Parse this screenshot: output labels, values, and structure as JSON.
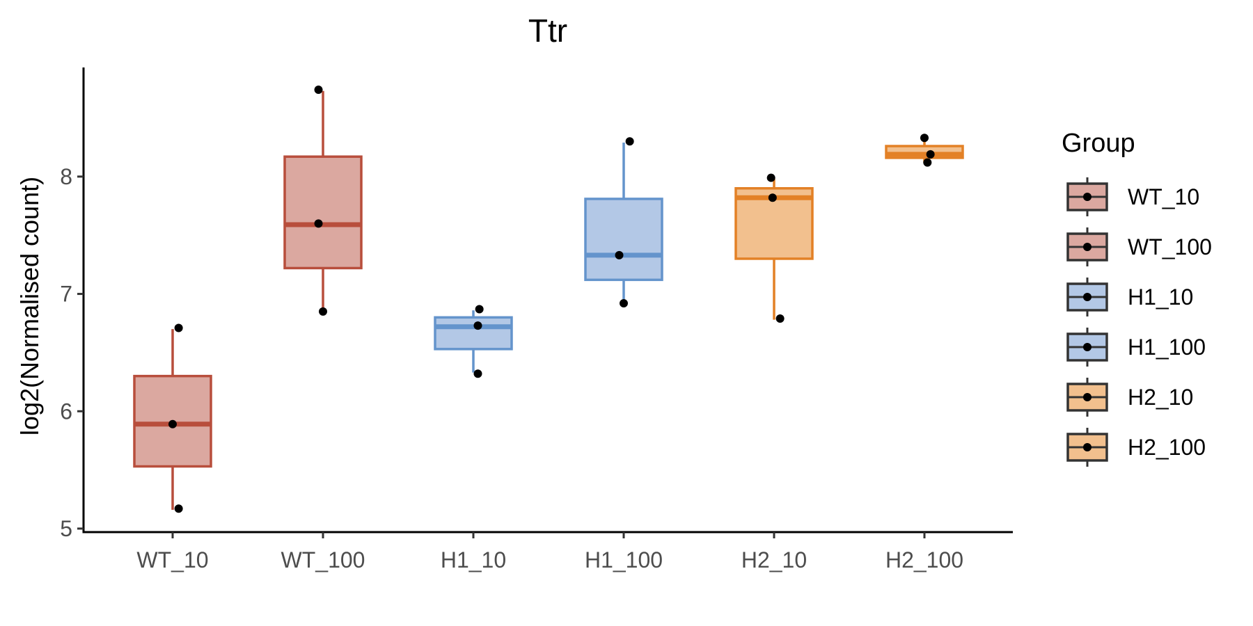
{
  "chart_data": {
    "type": "box",
    "title": "Ttr",
    "xlabel": "",
    "ylabel": "log2(Normalised count)",
    "ylim": [
      4.97,
      8.93
    ],
    "yticks": [
      5,
      6,
      7,
      8
    ],
    "grid": false,
    "legend_title": "Group",
    "legend_position": "right",
    "categories": [
      "WT_10",
      "WT_100",
      "H1_10",
      "H1_100",
      "H2_10",
      "H2_100"
    ],
    "groups": [
      {
        "name": "WT_10",
        "q1": 5.53,
        "median": 5.89,
        "q3": 6.3,
        "whisker_low": 5.16,
        "whisker_high": 6.7,
        "points": [
          6.71,
          5.89,
          5.17
        ],
        "jitter": [
          0.04,
          0.0,
          0.04
        ],
        "fill": "#dba8a0",
        "stroke": "#b84e3c"
      },
      {
        "name": "WT_100",
        "q1": 7.22,
        "median": 7.59,
        "q3": 8.17,
        "whisker_low": 6.85,
        "whisker_high": 8.73,
        "points": [
          8.74,
          7.6,
          6.85
        ],
        "jitter": [
          -0.03,
          -0.03,
          0.0
        ],
        "fill": "#dba8a0",
        "stroke": "#b84e3c"
      },
      {
        "name": "H1_10",
        "q1": 6.53,
        "median": 6.72,
        "q3": 6.8,
        "whisker_low": 6.33,
        "whisker_high": 6.86,
        "points": [
          6.87,
          6.73,
          6.32
        ],
        "jitter": [
          0.04,
          0.03,
          0.03
        ],
        "fill": "#b3c8e6",
        "stroke": "#6494cc"
      },
      {
        "name": "H1_100",
        "q1": 7.12,
        "median": 7.33,
        "q3": 7.81,
        "whisker_low": 6.91,
        "whisker_high": 8.29,
        "points": [
          8.3,
          7.33,
          6.92
        ],
        "jitter": [
          0.04,
          -0.03,
          0.0
        ],
        "fill": "#b3c8e6",
        "stroke": "#6494cc"
      },
      {
        "name": "H2_10",
        "q1": 7.3,
        "median": 7.82,
        "q3": 7.9,
        "whisker_low": 6.78,
        "whisker_high": 7.98,
        "points": [
          7.99,
          7.82,
          6.79
        ],
        "jitter": [
          -0.02,
          -0.01,
          0.04
        ],
        "fill": "#f2c08e",
        "stroke": "#e38126"
      },
      {
        "name": "H2_100",
        "q1": 8.16,
        "median": 8.19,
        "q3": 8.26,
        "whisker_low": 8.12,
        "whisker_high": 8.33,
        "points": [
          8.33,
          8.19,
          8.12
        ],
        "jitter": [
          0.0,
          0.04,
          0.02
        ],
        "fill": "#f2c08e",
        "stroke": "#e38126"
      }
    ],
    "legend_colors": {
      "WT_10": "#dba8a0",
      "WT_100": "#dba8a0",
      "H1_10": "#b3c8e6",
      "H1_100": "#b3c8e6",
      "H2_10": "#f2c08e",
      "H2_100": "#f2c08e"
    }
  }
}
